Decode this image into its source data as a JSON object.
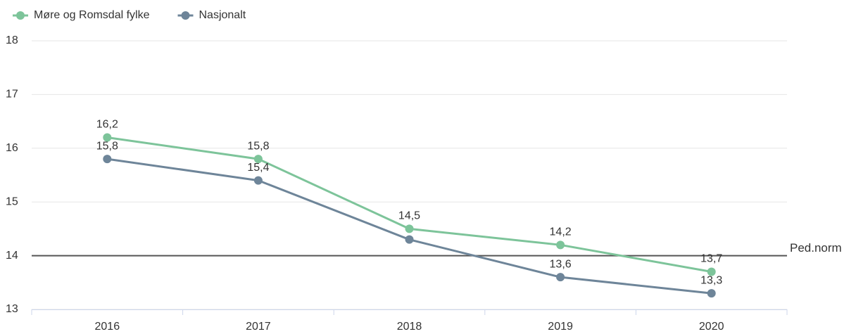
{
  "chart_data": {
    "type": "line",
    "categories": [
      "2016",
      "2017",
      "2018",
      "2019",
      "2020"
    ],
    "series": [
      {
        "name": "Møre og Romsdal fylke",
        "color": "#7dc49a",
        "values": [
          16.2,
          15.8,
          14.5,
          14.2,
          13.7
        ],
        "value_labels": [
          "16,2",
          "15,8",
          "14,5",
          "14,2",
          "13,7"
        ]
      },
      {
        "name": "Nasjonalt",
        "color": "#6e8599",
        "values": [
          15.8,
          15.4,
          14.3,
          13.6,
          13.3
        ],
        "value_labels": [
          "15,8",
          "15,4",
          null,
          "13,6",
          "13,3"
        ]
      }
    ],
    "ylim": [
      13,
      18
    ],
    "yticks": [
      13,
      14,
      15,
      16,
      17,
      18
    ],
    "grid": true,
    "legend": "top-left",
    "reference_line": {
      "value": 14,
      "label": "Ped.norm",
      "color": "#555555"
    }
  }
}
